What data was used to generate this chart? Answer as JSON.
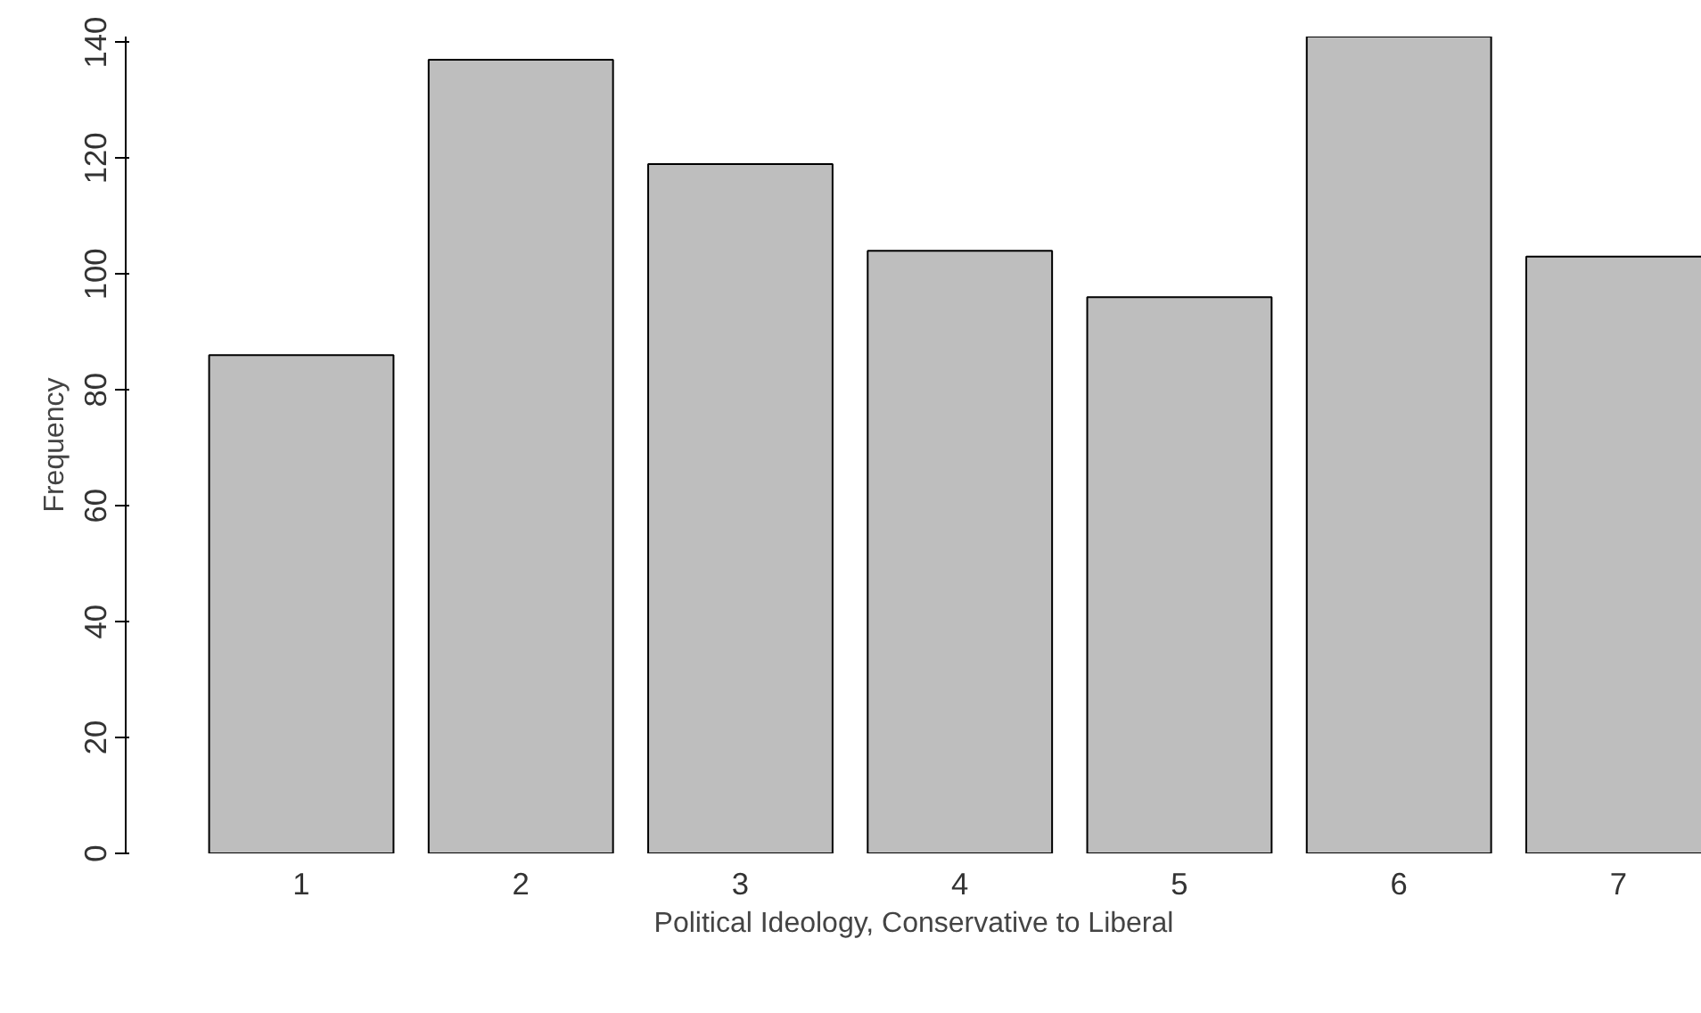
{
  "chart_data": {
    "type": "bar",
    "xlabel": "Political Ideology, Conservative to Liberal",
    "ylabel": "Frequency",
    "categories": [
      "1",
      "2",
      "3",
      "4",
      "5",
      "6",
      "7"
    ],
    "values": [
      86,
      137,
      119,
      104,
      96,
      141,
      103
    ],
    "color": "#bebebe",
    "ylim": [
      0,
      141
    ],
    "yticks": [
      0,
      20,
      40,
      60,
      80,
      100,
      120,
      140
    ],
    "grid": false
  }
}
